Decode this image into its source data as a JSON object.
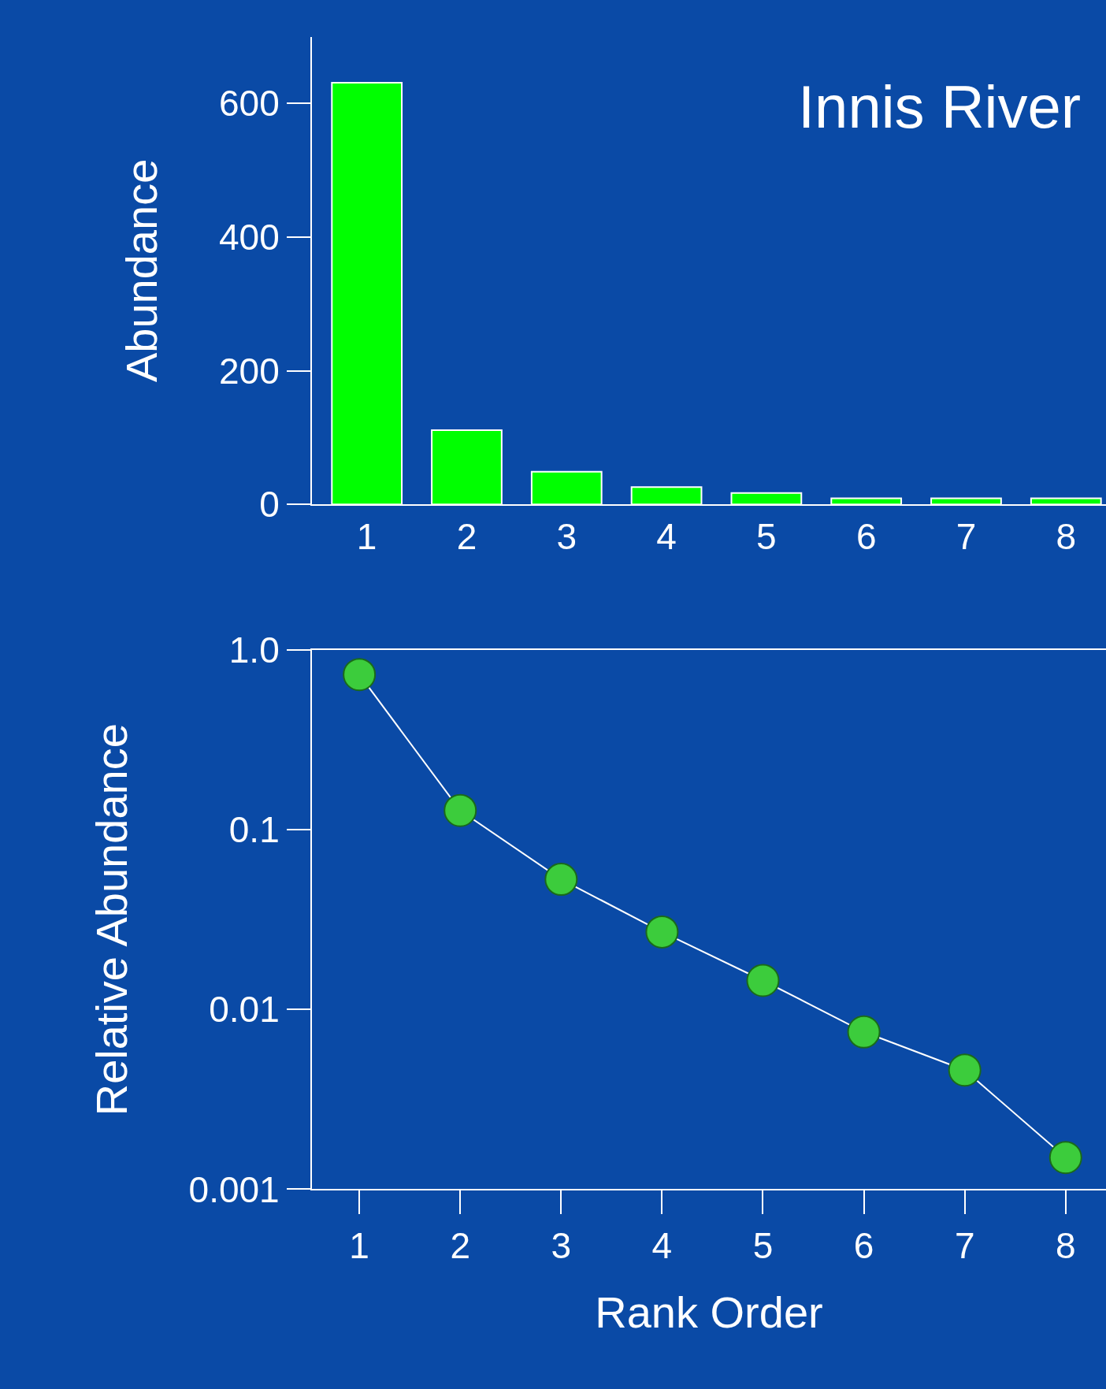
{
  "chart_data": [
    {
      "type": "bar",
      "title": "Innis River",
      "ylabel": "Abundance",
      "categories": [
        "1",
        "2",
        "3",
        "4",
        "5",
        "6",
        "7",
        "8"
      ],
      "values": [
        631,
        111,
        49,
        26,
        17,
        9,
        9,
        9
      ],
      "color": "#00ff00",
      "ylim": [
        0,
        700
      ],
      "yticks": [
        0,
        200,
        400,
        600
      ]
    },
    {
      "type": "line",
      "xlabel": "Rank Order",
      "ylabel": "Relative Abundance",
      "log": "y",
      "marker": "circle",
      "x": [
        1,
        2,
        3,
        4,
        5,
        6,
        7,
        8
      ],
      "values": [
        0.73,
        0.128,
        0.053,
        0.027,
        0.0145,
        0.0075,
        0.0046,
        0.0015
      ],
      "color": "#3ccc3c",
      "xlim": [
        0.53,
        8.4
      ],
      "xticks": [
        1,
        2,
        3,
        4,
        5,
        6,
        7,
        8
      ],
      "ylim": [
        0.001,
        1.0
      ],
      "yticks": [
        {
          "value": 0.001,
          "label": "0.001"
        },
        {
          "value": 0.01,
          "label": "0.01"
        },
        {
          "value": 0.1,
          "label": "0.1"
        },
        {
          "value": 1.0,
          "label": "1.0"
        }
      ]
    }
  ]
}
